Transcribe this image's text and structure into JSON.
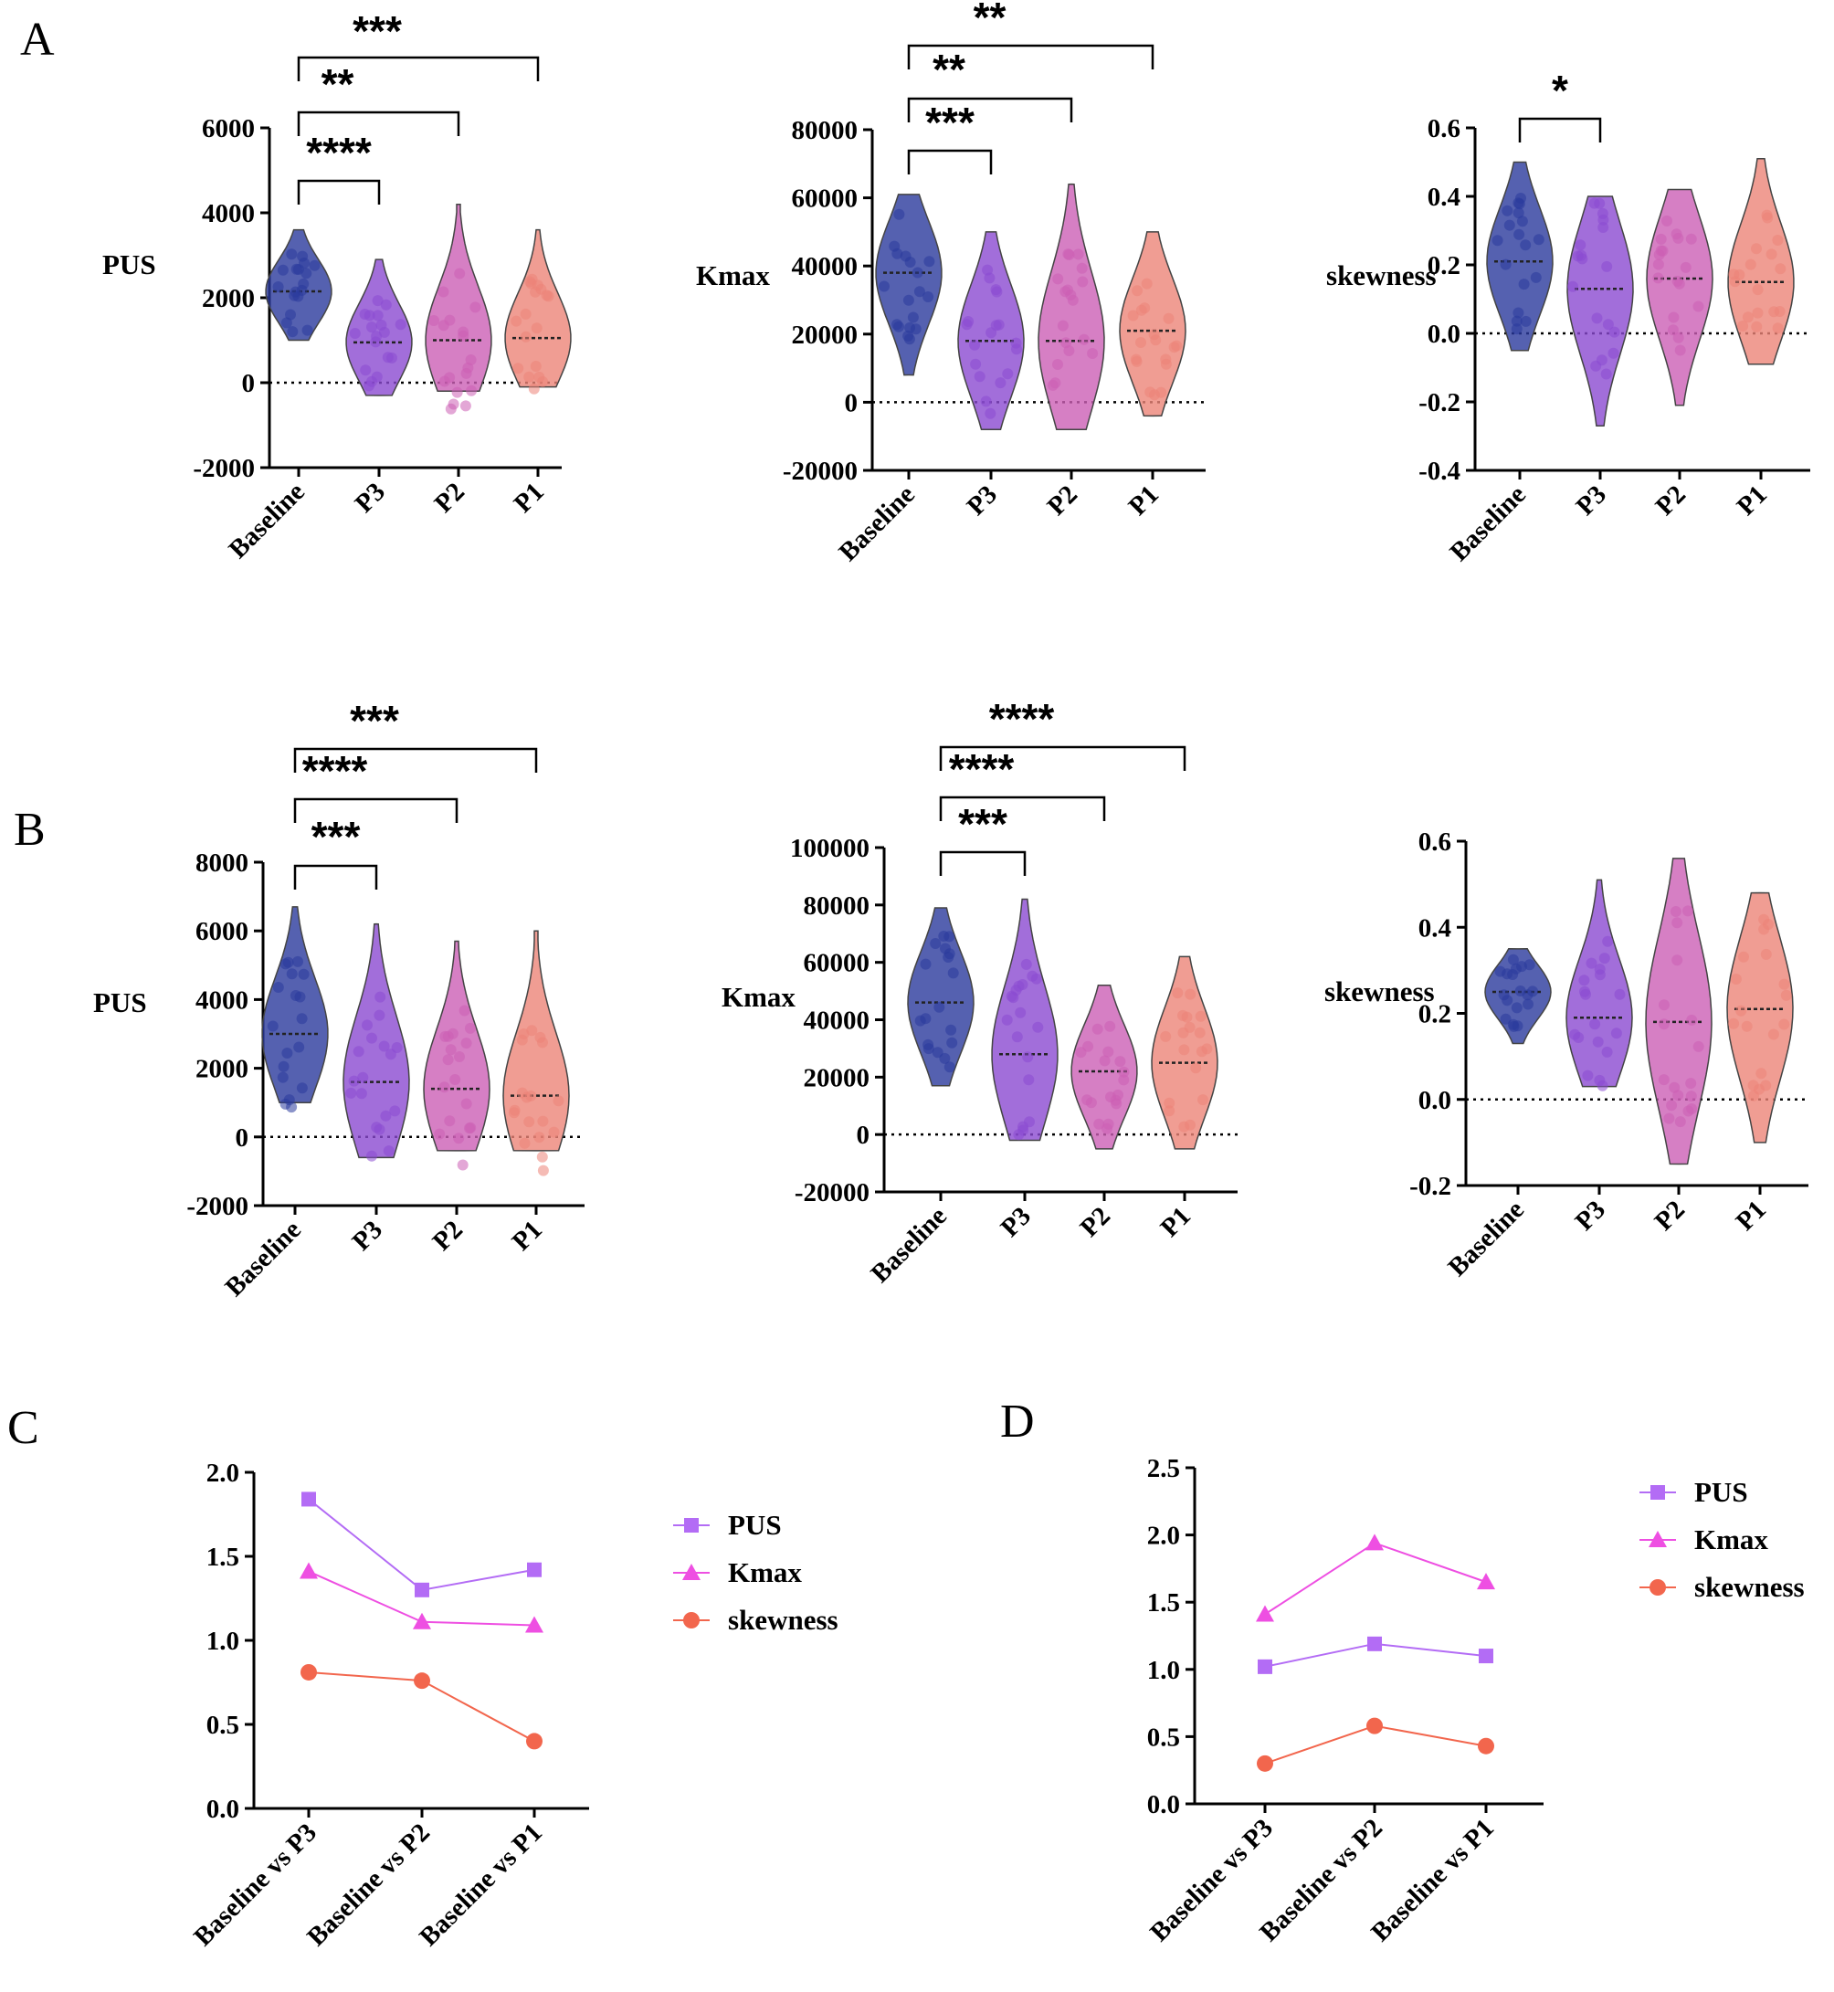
{
  "groups": [
    "Baseline",
    "P3",
    "P2",
    "P1"
  ],
  "colors": {
    "Baseline": "#2a3a9c",
    "P3": "#8b4ad1",
    "P2": "#cc5fb5",
    "P1": "#ec8478",
    "PUS": "#b36cf5",
    "Kmax": "#ee4fe2",
    "skewness": "#f2664d"
  },
  "chart_data": [
    {
      "panel": "A",
      "type": "violin",
      "ylabel": "PUS",
      "ylim": [
        -2000,
        6000
      ],
      "yticks": [
        -2000,
        0,
        2000,
        4000,
        6000
      ],
      "yticklabels": [
        "-2000",
        "0",
        "2000",
        "4000",
        "6000"
      ],
      "medians": [
        2150,
        950,
        1000,
        1050
      ],
      "ranges": [
        [
          1000,
          3600
        ],
        [
          -300,
          2900
        ],
        [
          -200,
          4200
        ],
        [
          -100,
          3600
        ]
      ],
      "comparisons": [
        {
          "from": "Baseline",
          "to": "P3",
          "label": "****"
        },
        {
          "from": "Baseline",
          "to": "P2",
          "label": "**"
        },
        {
          "from": "Baseline",
          "to": "P1",
          "label": "***"
        }
      ]
    },
    {
      "panel": "A",
      "type": "violin",
      "ylabel": "Kmax",
      "ylim": [
        -20000,
        80000
      ],
      "yticks": [
        -20000,
        0,
        20000,
        40000,
        60000,
        80000
      ],
      "yticklabels": [
        "-20000",
        "0",
        "20000",
        "40000",
        "60000",
        "80000"
      ],
      "medians": [
        38000,
        18000,
        18000,
        21000
      ],
      "ranges": [
        [
          8000,
          61000
        ],
        [
          -8000,
          50000
        ],
        [
          -8000,
          64000
        ],
        [
          -4000,
          50000
        ]
      ],
      "comparisons": [
        {
          "from": "Baseline",
          "to": "P3",
          "label": "***"
        },
        {
          "from": "Baseline",
          "to": "P2",
          "label": "**"
        },
        {
          "from": "Baseline",
          "to": "P1",
          "label": "**"
        }
      ]
    },
    {
      "panel": "A",
      "type": "violin",
      "ylabel": "skewness",
      "ylim": [
        -0.4,
        0.6
      ],
      "yticks": [
        -0.4,
        -0.2,
        0.0,
        0.2,
        0.4,
        0.6
      ],
      "yticklabels": [
        "-0.4",
        "-0.2",
        "0.0",
        "0.2",
        "0.4",
        "0.6"
      ],
      "medians": [
        0.21,
        0.13,
        0.16,
        0.15
      ],
      "ranges": [
        [
          -0.05,
          0.5
        ],
        [
          -0.27,
          0.4
        ],
        [
          -0.21,
          0.42
        ],
        [
          -0.09,
          0.51
        ]
      ],
      "comparisons": [
        {
          "from": "Baseline",
          "to": "P3",
          "label": "*"
        }
      ]
    },
    {
      "panel": "B",
      "type": "violin",
      "ylabel": "PUS",
      "ylim": [
        -2000,
        8000
      ],
      "yticks": [
        -2000,
        0,
        2000,
        4000,
        6000,
        8000
      ],
      "yticklabels": [
        "-2000",
        "0",
        "2000",
        "4000",
        "6000",
        "8000"
      ],
      "medians": [
        3000,
        1600,
        1400,
        1200
      ],
      "ranges": [
        [
          1000,
          6700
        ],
        [
          -600,
          6200
        ],
        [
          -400,
          5700
        ],
        [
          -400,
          6000
        ]
      ],
      "comparisons": [
        {
          "from": "Baseline",
          "to": "P3",
          "label": "***"
        },
        {
          "from": "Baseline",
          "to": "P2",
          "label": "****"
        },
        {
          "from": "Baseline",
          "to": "P1",
          "label": "***"
        }
      ]
    },
    {
      "panel": "B",
      "type": "violin",
      "ylabel": "Kmax",
      "ylim": [
        -20000,
        100000
      ],
      "yticks": [
        -20000,
        0,
        20000,
        40000,
        60000,
        80000,
        100000
      ],
      "yticklabels": [
        "-20000",
        "0",
        "20000",
        "40000",
        "60000",
        "80000",
        "100000"
      ],
      "medians": [
        46000,
        28000,
        22000,
        25000
      ],
      "ranges": [
        [
          17000,
          79000
        ],
        [
          -2000,
          82000
        ],
        [
          -5000,
          52000
        ],
        [
          -5000,
          62000
        ]
      ],
      "comparisons": [
        {
          "from": "Baseline",
          "to": "P3",
          "label": "***"
        },
        {
          "from": "Baseline",
          "to": "P2",
          "label": "****"
        },
        {
          "from": "Baseline",
          "to": "P1",
          "label": "****"
        }
      ]
    },
    {
      "panel": "B",
      "type": "violin",
      "ylabel": "skewness",
      "ylim": [
        -0.2,
        0.6
      ],
      "yticks": [
        -0.2,
        0.0,
        0.2,
        0.4,
        0.6
      ],
      "yticklabels": [
        "-0.2",
        "0.0",
        "0.2",
        "0.4",
        "0.6"
      ],
      "medians": [
        0.25,
        0.19,
        0.18,
        0.21
      ],
      "ranges": [
        [
          0.13,
          0.35
        ],
        [
          0.03,
          0.51
        ],
        [
          -0.15,
          0.56
        ],
        [
          -0.1,
          0.48
        ]
      ],
      "comparisons": []
    },
    {
      "panel": "C",
      "type": "line",
      "categories": [
        "Baseline vs P3",
        "Baseline vs P2",
        "Baseline vs P1"
      ],
      "ylim": [
        0.0,
        2.0
      ],
      "yticks": [
        0.0,
        0.5,
        1.0,
        1.5,
        2.0
      ],
      "yticklabels": [
        "0.0",
        "0.5",
        "1.0",
        "1.5",
        "2.0"
      ],
      "series": [
        {
          "name": "PUS",
          "marker": "square",
          "values": [
            1.84,
            1.3,
            1.42
          ]
        },
        {
          "name": "Kmax",
          "marker": "triangle",
          "values": [
            1.41,
            1.11,
            1.09
          ]
        },
        {
          "name": "skewness",
          "marker": "circle",
          "values": [
            0.81,
            0.76,
            0.4
          ]
        }
      ]
    },
    {
      "panel": "D",
      "type": "line",
      "categories": [
        "Baseline vs P3",
        "Baseline vs P2",
        "Baseline vs P1"
      ],
      "ylim": [
        0.0,
        2.5
      ],
      "yticks": [
        0.0,
        0.5,
        1.0,
        1.5,
        2.0,
        2.5
      ],
      "yticklabels": [
        "0.0",
        "0.5",
        "1.0",
        "1.5",
        "2.0",
        "2.5"
      ],
      "series": [
        {
          "name": "PUS",
          "marker": "square",
          "values": [
            1.02,
            1.19,
            1.1
          ]
        },
        {
          "name": "Kmax",
          "marker": "triangle",
          "values": [
            1.41,
            1.94,
            1.65
          ]
        },
        {
          "name": "skewness",
          "marker": "circle",
          "values": [
            0.3,
            0.58,
            0.43
          ]
        }
      ]
    }
  ]
}
